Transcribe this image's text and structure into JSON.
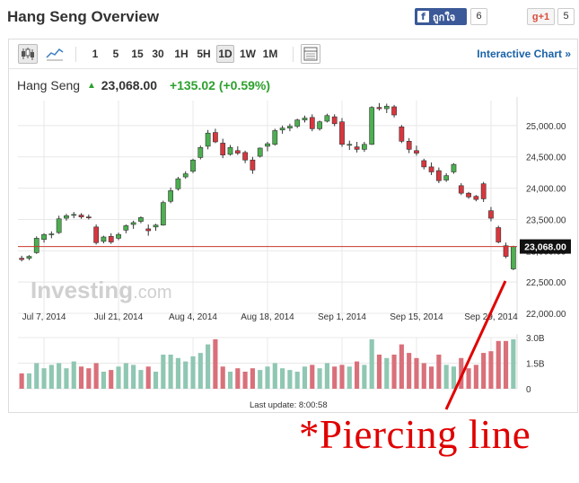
{
  "page": {
    "title": "Hang Seng Overview"
  },
  "social": {
    "fb_label": "ถูกใจ",
    "fb_icon": "facebook-icon",
    "fb_count": "6",
    "gplus_label": "g+1",
    "gplus_count": "5"
  },
  "toolbar": {
    "chart_type_icon": "candlestick-icon",
    "line_icon": "line-chart-icon",
    "timeframes": [
      "1",
      "5",
      "15",
      "30",
      "1H",
      "5H",
      "1D",
      "1W",
      "1M"
    ],
    "active_timeframe": "1D",
    "table_icon": "table-icon",
    "interactive_label": "Interactive Chart »"
  },
  "quote": {
    "name": "Hang Seng",
    "price": "23,068.00",
    "change": "+135.02 (+0.59%)",
    "direction": "up"
  },
  "watermark": {
    "brand": "Investing",
    "suffix": ".com"
  },
  "last_update": "Last update: 8:00:58",
  "annotation": "*Piercing line",
  "colors": {
    "up": "#4caf50",
    "down": "#d9363e",
    "volume_up": "#8fc7b2",
    "volume_down": "#d9707a",
    "price_line": "#c9372c",
    "link": "#1a62a8",
    "annotation": "#e00000"
  },
  "chart_data": {
    "type": "candlestick",
    "price_label": "23,068.00",
    "price_line_value": 23068,
    "y_ticks": [
      "25,000.00",
      "24,500.00",
      "24,000.00",
      "23,500.00",
      "23,000.00",
      "22,500.00",
      "22,000.00"
    ],
    "y_tick_values": [
      25000,
      24500,
      24000,
      23500,
      23000,
      22500,
      22000
    ],
    "y_range": [
      21900,
      25400
    ],
    "x_labels": [
      "Jul 7, 2014",
      "Jul 21, 2014",
      "Aug 4, 2014",
      "Aug 18, 2014",
      "Sep 1, 2014",
      "Sep 15, 2014",
      "Sep 29, 2014"
    ],
    "x_label_index": [
      3,
      13,
      23,
      33,
      43,
      53,
      63
    ],
    "volume_ticks": [
      "3.0B",
      "1.5B",
      "0"
    ],
    "volume_tick_values": [
      3.0,
      1.5,
      0
    ],
    "volume_range": [
      0,
      3.0
    ],
    "candles": [
      [
        22880,
        22920,
        22830,
        22860,
        0.9
      ],
      [
        22880,
        22930,
        22850,
        22910,
        0.9
      ],
      [
        22970,
        23230,
        22950,
        23200,
        1.5
      ],
      [
        23180,
        23280,
        23130,
        23260,
        1.2
      ],
      [
        23260,
        23310,
        23200,
        23270,
        1.4
      ],
      [
        23290,
        23560,
        23270,
        23510,
        1.5
      ],
      [
        23520,
        23590,
        23480,
        23560,
        1.2
      ],
      [
        23570,
        23620,
        23520,
        23580,
        1.6
      ],
      [
        23570,
        23600,
        23510,
        23540,
        1.3
      ],
      [
        23540,
        23580,
        23500,
        23530,
        1.2
      ],
      [
        23380,
        23420,
        23100,
        23130,
        1.5
      ],
      [
        23150,
        23240,
        23120,
        23220,
        1.0
      ],
      [
        23230,
        23280,
        23110,
        23140,
        1.1
      ],
      [
        23200,
        23290,
        23170,
        23260,
        1.3
      ],
      [
        23330,
        23420,
        23280,
        23400,
        1.5
      ],
      [
        23420,
        23480,
        23350,
        23450,
        1.4
      ],
      [
        23470,
        23550,
        23440,
        23530,
        1.1
      ],
      [
        23350,
        23420,
        23240,
        23320,
        1.3
      ],
      [
        23380,
        23430,
        23320,
        23410,
        1.0
      ],
      [
        23410,
        23800,
        23400,
        23770,
        2.0
      ],
      [
        23790,
        24010,
        23760,
        23960,
        2.0
      ],
      [
        23990,
        24180,
        23960,
        24150,
        1.8
      ],
      [
        24180,
        24270,
        24150,
        24230,
        1.6
      ],
      [
        24270,
        24470,
        24240,
        24450,
        1.9
      ],
      [
        24490,
        24680,
        24460,
        24650,
        2.1
      ],
      [
        24670,
        24930,
        24620,
        24880,
        2.6
      ],
      [
        24890,
        24950,
        24720,
        24740,
        2.9
      ],
      [
        24720,
        24790,
        24480,
        24530,
        1.3
      ],
      [
        24540,
        24690,
        24520,
        24650,
        1.0
      ],
      [
        24600,
        24670,
        24530,
        24560,
        1.2
      ],
      [
        24570,
        24600,
        24400,
        24450,
        1.0
      ],
      [
        24450,
        24500,
        24230,
        24290,
        1.2
      ],
      [
        24510,
        24650,
        24490,
        24640,
        1.1
      ],
      [
        24670,
        24740,
        24590,
        24710,
        1.3
      ],
      [
        24700,
        24950,
        24680,
        24920,
        1.5
      ],
      [
        24930,
        25000,
        24870,
        24960,
        1.2
      ],
      [
        24960,
        25030,
        24910,
        24990,
        1.1
      ],
      [
        24990,
        25110,
        24960,
        25090,
        1.0
      ],
      [
        25090,
        25160,
        25050,
        25120,
        1.3
      ],
      [
        25130,
        25180,
        24910,
        24950,
        1.4
      ],
      [
        24950,
        25080,
        24920,
        25060,
        1.2
      ],
      [
        25070,
        25190,
        25050,
        25160,
        1.5
      ],
      [
        25140,
        25180,
        24990,
        25030,
        1.3
      ],
      [
        25060,
        25120,
        24660,
        24700,
        1.4
      ],
      [
        24700,
        24760,
        24610,
        24700,
        1.3
      ],
      [
        24660,
        24740,
        24570,
        24620,
        1.6
      ],
      [
        24620,
        24740,
        24580,
        24700,
        1.4
      ],
      [
        24700,
        25310,
        24690,
        25290,
        2.9
      ],
      [
        25290,
        25360,
        25240,
        25270,
        2.0
      ],
      [
        25270,
        25350,
        25200,
        25310,
        1.8
      ],
      [
        25300,
        25330,
        25130,
        25170,
        2.0
      ],
      [
        24980,
        25010,
        24720,
        24750,
        2.6
      ],
      [
        24750,
        24800,
        24560,
        24620,
        2.1
      ],
      [
        24600,
        24680,
        24520,
        24560,
        1.8
      ],
      [
        24440,
        24470,
        24300,
        24340,
        1.5
      ],
      [
        24340,
        24410,
        24210,
        24260,
        1.3
      ],
      [
        24280,
        24330,
        24080,
        24120,
        2.0
      ],
      [
        24130,
        24240,
        24100,
        24200,
        1.4
      ],
      [
        24260,
        24400,
        24230,
        24380,
        1.3
      ],
      [
        24040,
        24080,
        23890,
        23920,
        1.8
      ],
      [
        23920,
        23940,
        23830,
        23860,
        1.2
      ],
      [
        23870,
        23890,
        23790,
        23820,
        1.4
      ],
      [
        24070,
        24100,
        23780,
        23830,
        2.1
      ],
      [
        23640,
        23700,
        23470,
        23520,
        2.2
      ],
      [
        23370,
        23400,
        23120,
        23140,
        2.8
      ],
      [
        23080,
        23130,
        22880,
        22910,
        2.8
      ],
      [
        22710,
        23080,
        22690,
        23068,
        2.9
      ]
    ]
  }
}
